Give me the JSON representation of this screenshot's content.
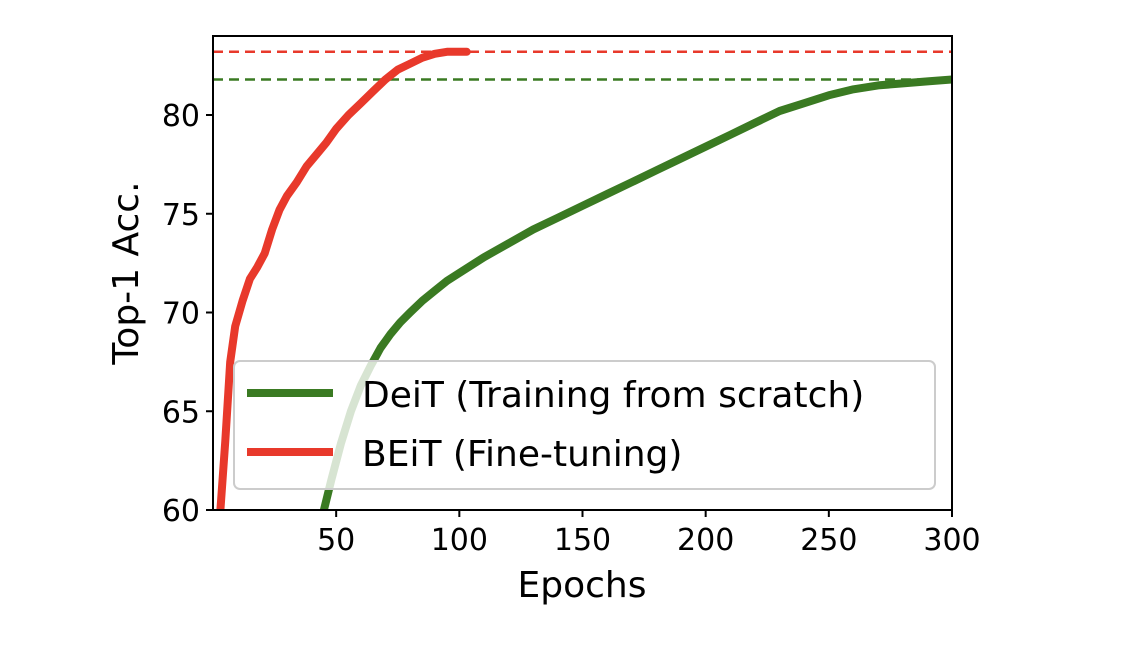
{
  "chart_data": {
    "type": "line",
    "xlabel": "Epochs",
    "ylabel": "Top-1 Acc.",
    "xlim": [
      0,
      300
    ],
    "ylim": [
      60,
      84
    ],
    "x_ticks": [
      50,
      100,
      150,
      200,
      250,
      300
    ],
    "y_ticks": [
      60,
      65,
      70,
      75,
      80
    ],
    "grid": false,
    "legend": {
      "placement": "lower-right"
    },
    "series": [
      {
        "name": "DeiT (Training from scratch)",
        "color": "#3a7a22",
        "x": [
          45,
          48,
          52,
          56,
          60,
          64,
          68,
          72,
          76,
          80,
          85,
          90,
          95,
          100,
          110,
          120,
          130,
          140,
          150,
          160,
          170,
          180,
          190,
          200,
          210,
          220,
          230,
          240,
          250,
          260,
          270,
          280,
          290,
          300
        ],
        "y": [
          60.0,
          61.5,
          63.4,
          65.0,
          66.3,
          67.3,
          68.2,
          68.9,
          69.5,
          70.0,
          70.6,
          71.1,
          71.6,
          72.0,
          72.8,
          73.5,
          74.2,
          74.8,
          75.4,
          76.0,
          76.6,
          77.2,
          77.8,
          78.4,
          79.0,
          79.6,
          80.2,
          80.6,
          81.0,
          81.3,
          81.5,
          81.6,
          81.7,
          81.8
        ]
      },
      {
        "name": "BEiT (Fine-tuning)",
        "color": "#e8392b",
        "x": [
          3,
          5,
          7,
          9,
          12,
          15,
          18,
          21,
          24,
          27,
          30,
          34,
          38,
          42,
          46,
          50,
          55,
          60,
          65,
          70,
          75,
          80,
          85,
          90,
          95,
          100,
          103
        ],
        "y": [
          60.0,
          63.5,
          67.5,
          69.3,
          70.6,
          71.7,
          72.3,
          73.0,
          74.2,
          75.2,
          75.9,
          76.6,
          77.4,
          78.0,
          78.6,
          79.3,
          80.0,
          80.6,
          81.2,
          81.8,
          82.3,
          82.6,
          82.9,
          83.1,
          83.2,
          83.2,
          83.2
        ]
      }
    ],
    "reference_lines": [
      {
        "y": 83.2,
        "color": "#e8392b",
        "style": "dashed"
      },
      {
        "y": 81.8,
        "color": "#3a7a22",
        "style": "dashed"
      }
    ]
  }
}
